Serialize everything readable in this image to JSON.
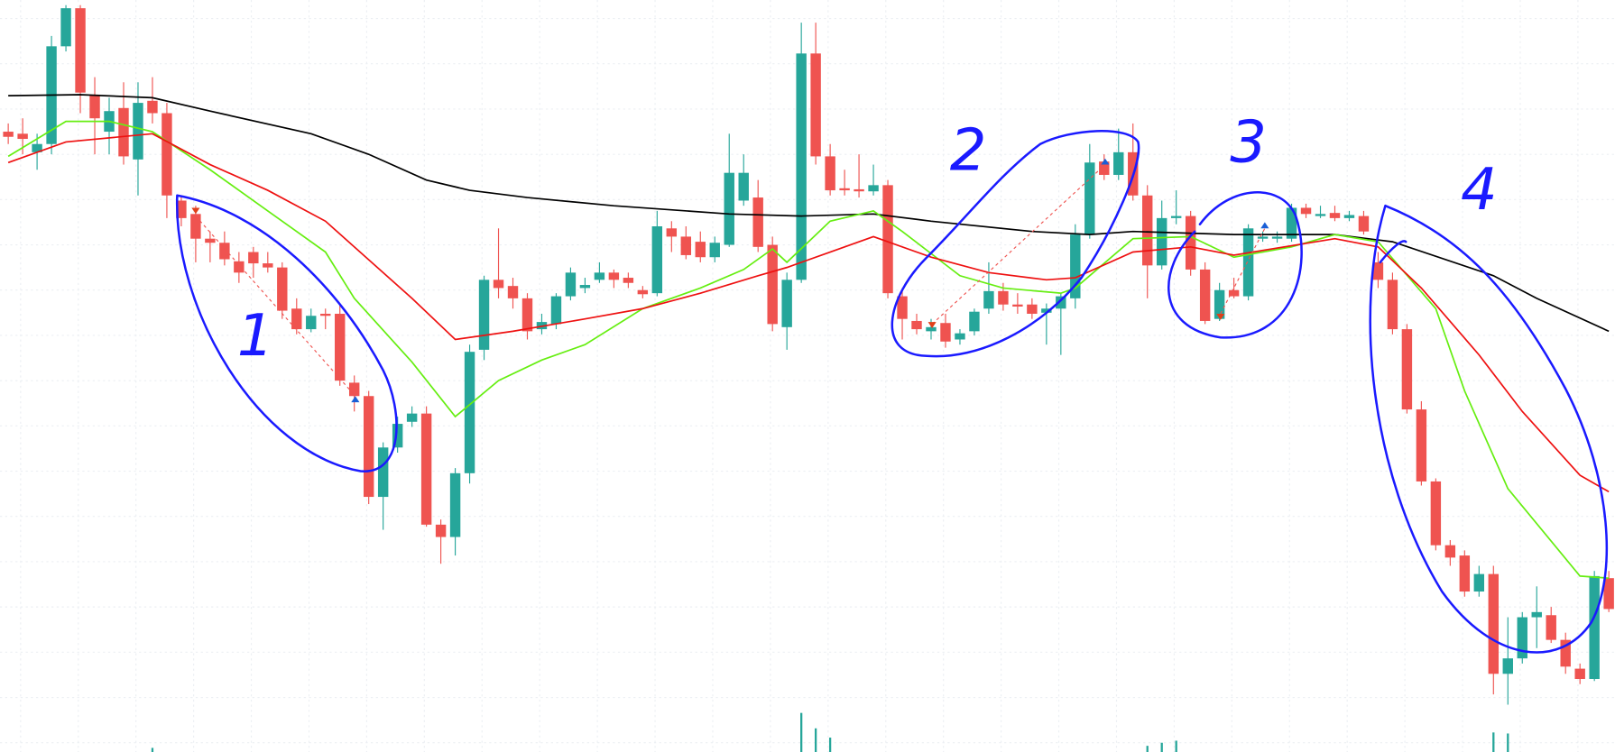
{
  "chart_data": {
    "type": "candlestick",
    "ylim": [
      0,
      731
    ],
    "grid": true,
    "up_color": "#26a69a",
    "down_color": "#ef5350",
    "open": [
      603,
      601,
      583,
      591,
      686,
      723,
      639,
      603,
      626,
      576,
      633,
      621,
      536,
      523,
      499,
      495,
      477,
      486,
      475,
      471,
      431,
      411,
      426,
      426,
      359,
      346,
      248,
      296,
      321,
      329,
      221,
      209,
      271,
      391,
      459,
      453,
      441,
      411,
      416,
      443,
      451,
      459,
      466,
      461,
      449,
      446,
      509,
      501,
      496,
      481,
      493,
      536,
      539,
      493,
      413,
      459,
      679,
      579,
      548,
      547,
      545,
      551,
      443,
      419,
      409,
      417,
      401,
      409,
      431,
      448,
      435,
      435,
      427,
      431,
      441,
      503,
      574,
      561,
      583,
      541,
      473,
      519,
      521,
      469,
      421,
      449,
      443,
      499,
      499,
      499,
      529,
      521,
      524,
      519,
      521,
      476,
      459,
      411,
      333,
      263,
      201,
      191,
      156,
      173,
      76,
      91,
      131,
      133,
      109,
      81,
      71,
      169
    ],
    "high": [
      611,
      616,
      601,
      696,
      726,
      726,
      656,
      636,
      651,
      651,
      656,
      631,
      541,
      531,
      506,
      506,
      486,
      491,
      486,
      476,
      441,
      431,
      431,
      436,
      366,
      351,
      301,
      326,
      336,
      336,
      226,
      276,
      396,
      463,
      509,
      461,
      446,
      426,
      446,
      471,
      461,
      476,
      469,
      466,
      453,
      526,
      516,
      511,
      506,
      501,
      601,
      581,
      556,
      501,
      466,
      709,
      709,
      591,
      566,
      581,
      571,
      556,
      451,
      426,
      421,
      426,
      411,
      431,
      476,
      456,
      446,
      441,
      436,
      446,
      513,
      591,
      581,
      606,
      611,
      551,
      536,
      546,
      526,
      476,
      456,
      461,
      513,
      506,
      506,
      533,
      533,
      531,
      531,
      526,
      526,
      486,
      466,
      416,
      341,
      266,
      206,
      196,
      181,
      181,
      131,
      136,
      161,
      141,
      116,
      86,
      176,
      176
    ],
    "low": [
      591,
      581,
      566,
      581,
      681,
      621,
      581,
      581,
      571,
      541,
      611,
      519,
      511,
      476,
      476,
      473,
      456,
      461,
      466,
      421,
      406,
      408,
      411,
      356,
      331,
      241,
      216,
      291,
      316,
      219,
      183,
      191,
      261,
      381,
      441,
      431,
      401,
      406,
      411,
      439,
      446,
      456,
      451,
      451,
      441,
      443,
      486,
      479,
      476,
      476,
      491,
      531,
      486,
      409,
      391,
      456,
      571,
      541,
      541,
      539,
      541,
      441,
      401,
      406,
      401,
      393,
      396,
      405,
      426,
      429,
      426,
      421,
      396,
      386,
      431,
      499,
      556,
      556,
      536,
      441,
      469,
      513,
      463,
      416,
      419,
      441,
      439,
      496,
      495,
      496,
      519,
      519,
      516,
      516,
      503,
      451,
      406,
      329,
      259,
      196,
      181,
      151,
      151,
      56,
      46,
      86,
      101,
      106,
      76,
      66,
      69,
      136
    ],
    "close": [
      598,
      596,
      591,
      686,
      723,
      641,
      616,
      623,
      579,
      631,
      621,
      541,
      519,
      499,
      495,
      479,
      466,
      475,
      471,
      429,
      411,
      424,
      424,
      361,
      346,
      248,
      296,
      319,
      329,
      221,
      209,
      271,
      389,
      459,
      451,
      441,
      409,
      418,
      443,
      466,
      454,
      466,
      459,
      456,
      445,
      511,
      501,
      483,
      481,
      495,
      563,
      563,
      491,
      416,
      459,
      679,
      579,
      546,
      546,
      545,
      551,
      446,
      421,
      411,
      413,
      399,
      407,
      428,
      448,
      435,
      433,
      426,
      431,
      443,
      503,
      573,
      561,
      583,
      541,
      473,
      519,
      521,
      469,
      419,
      449,
      443,
      509,
      501,
      501,
      529,
      523,
      523,
      519,
      522,
      506,
      459,
      411,
      333,
      263,
      201,
      189,
      156,
      173,
      76,
      91,
      131,
      136,
      109,
      83,
      71,
      171,
      139
    ],
    "overlays": [
      {
        "color": "#000000",
        "x": [
          0,
          5,
          10,
          14,
          21,
          25,
          29,
          32,
          36,
          42,
          50,
          55,
          60,
          64,
          71,
          75,
          78,
          85,
          92,
          96,
          103,
          106,
          111
        ],
        "values": [
          638,
          639,
          636,
          623,
          601,
          581,
          556,
          546,
          539,
          531,
          523,
          521,
          523,
          516,
          506,
          503,
          506,
          503,
          503,
          496,
          463,
          441,
          409
        ]
      },
      {
        "color": "#66ee11",
        "x": [
          0,
          4,
          7,
          10,
          14,
          18,
          22,
          24,
          28,
          31,
          34,
          37,
          40,
          44,
          48,
          51,
          53,
          54,
          57,
          60,
          62,
          66,
          69,
          73,
          74,
          78,
          82,
          85,
          89,
          92,
          95,
          99,
          101,
          104,
          109,
          111
        ],
        "values": [
          579,
          613,
          613,
          603,
          566,
          526,
          486,
          441,
          379,
          326,
          361,
          381,
          396,
          431,
          451,
          469,
          489,
          476,
          516,
          526,
          506,
          463,
          451,
          446,
          451,
          499,
          501,
          481,
          491,
          503,
          496,
          431,
          351,
          256,
          171,
          169
        ]
      },
      {
        "color": "#ee1111",
        "x": [
          0,
          4,
          10,
          14,
          18,
          22,
          28,
          31,
          35,
          40,
          44,
          48,
          52,
          54,
          57,
          60,
          64,
          68,
          72,
          74,
          78,
          82,
          85,
          92,
          95,
          98,
          102,
          105,
          109,
          111
        ],
        "values": [
          573,
          593,
          601,
          571,
          546,
          516,
          441,
          401,
          409,
          421,
          431,
          446,
          463,
          471,
          486,
          501,
          481,
          466,
          459,
          461,
          486,
          491,
          483,
          499,
          491,
          451,
          386,
          331,
          269,
          253
        ]
      }
    ],
    "volume": {
      "color": "#26a69a",
      "x": [
        10,
        55,
        56,
        57,
        79,
        80,
        81,
        103,
        104
      ],
      "values": [
        4,
        38,
        23,
        14,
        6,
        9,
        11,
        19,
        18
      ]
    },
    "annotations": [
      "1",
      "2",
      "3",
      "4"
    ]
  }
}
